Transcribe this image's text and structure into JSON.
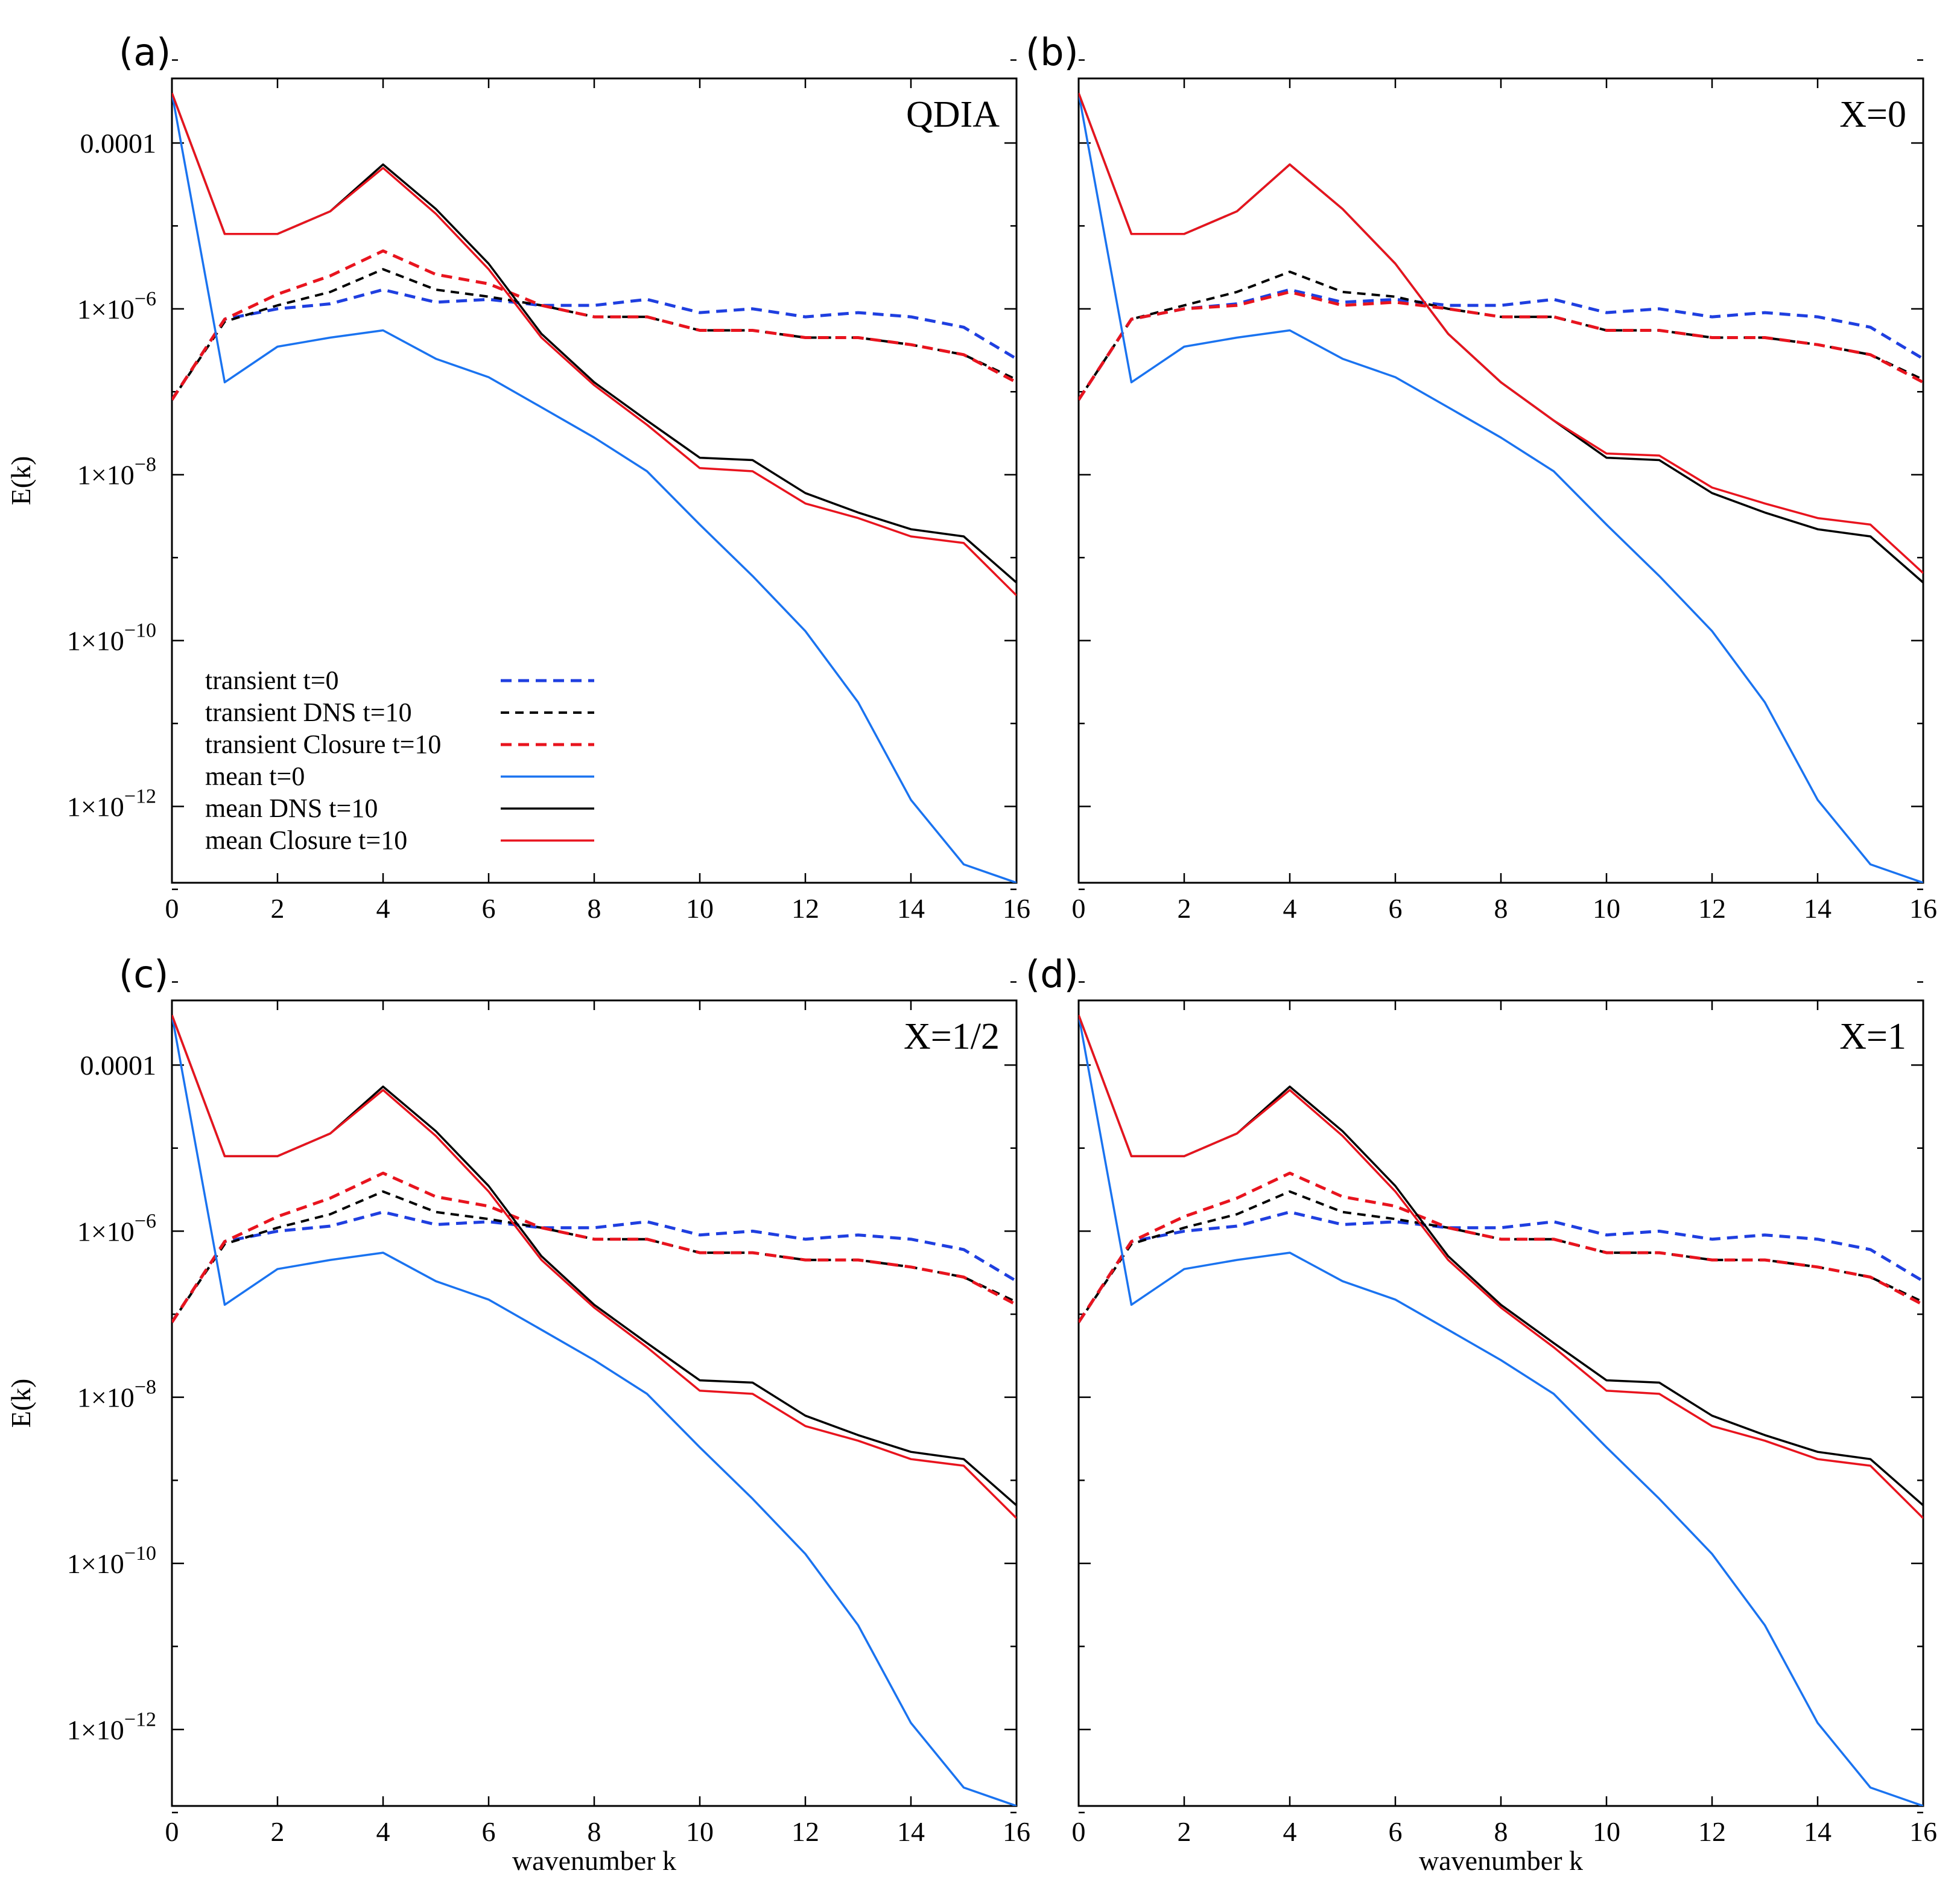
{
  "colors": {
    "dns": "#000000",
    "closure": "#e8141e",
    "transient_t0": "#1f3fe0",
    "mean_t0": "#1a73f0"
  },
  "legend": {
    "items": [
      {
        "label": "transient t=0",
        "series": "transient_t0"
      },
      {
        "label": "transient DNS t=10",
        "series": "transient_dns"
      },
      {
        "label": "transient Closure t=10",
        "series": "transient_closure"
      },
      {
        "label": "mean t=0",
        "series": "mean_t0"
      },
      {
        "label": "mean DNS t=10",
        "series": "mean_dns"
      },
      {
        "label": "mean Closure t=10",
        "series": "mean_closure"
      }
    ]
  },
  "chart_data": [
    {
      "panel": "(a)",
      "title": "QDIA",
      "type": "line",
      "xlabel": "",
      "ylabel": "E(k)",
      "yscale": "log",
      "xlim": [
        0,
        16
      ],
      "ylim": [
        1.2e-13,
        0.0006
      ],
      "xticks": [
        "0",
        "2",
        "4",
        "6",
        "8",
        "10",
        "12",
        "14",
        "16"
      ],
      "yticks": [
        {
          "base": "0.0001",
          "exp": ""
        },
        {
          "base": "1×10",
          "exp": "−6"
        },
        {
          "base": "1×10",
          "exp": "−8"
        },
        {
          "base": "1×10",
          "exp": "−10"
        },
        {
          "base": "1×10",
          "exp": "−12"
        }
      ],
      "x": [
        0,
        1,
        2,
        3,
        4,
        5,
        6,
        7,
        8,
        9,
        10,
        11,
        12,
        13,
        14,
        15,
        16
      ],
      "series": [
        {
          "name": "transient t=0",
          "key": "transient_t0",
          "values": [
            8e-08,
            7.5e-07,
            1e-06,
            1.15e-06,
            1.7e-06,
            1.2e-06,
            1.3e-06,
            1.1e-06,
            1.1e-06,
            1.3e-06,
            9e-07,
            1e-06,
            8e-07,
            9e-07,
            8e-07,
            6e-07,
            2.5e-07
          ]
        },
        {
          "name": "transient DNS t=10",
          "key": "transient_dns",
          "values": [
            8e-08,
            7e-07,
            1.1e-06,
            1.6e-06,
            3e-06,
            1.7e-06,
            1.4e-06,
            1.1e-06,
            8e-07,
            8e-07,
            5.5e-07,
            5.5e-07,
            4.5e-07,
            4.5e-07,
            3.7e-07,
            2.8e-07,
            1.4e-07
          ]
        },
        {
          "name": "transient Closure t=10",
          "key": "transient_closure",
          "values": [
            8e-08,
            7.5e-07,
            1.5e-06,
            2.5e-06,
            5e-06,
            2.6e-06,
            2e-06,
            1.1e-06,
            8e-07,
            8e-07,
            5.5e-07,
            5.5e-07,
            4.5e-07,
            4.5e-07,
            3.7e-07,
            2.8e-07,
            1.3e-07
          ]
        },
        {
          "name": "mean t=0",
          "key": "mean_t0",
          "values": [
            0.0004,
            1.3e-07,
            3.5e-07,
            4.5e-07,
            5.5e-07,
            2.5e-07,
            1.5e-07,
            6.5e-08,
            2.8e-08,
            1.1e-08,
            2.5e-09,
            6e-10,
            1.3e-10,
            1.8e-11,
            1.2e-12,
            2e-13,
            1.2e-13
          ]
        },
        {
          "name": "mean DNS t=10",
          "key": "mean_dns",
          "values": [
            0.0004,
            8e-06,
            8e-06,
            1.5e-05,
            5.5e-05,
            1.6e-05,
            3.5e-06,
            5e-07,
            1.3e-07,
            4.5e-08,
            1.6e-08,
            1.5e-08,
            6e-09,
            3.5e-09,
            2.2e-09,
            1.8e-09,
            5e-10
          ]
        },
        {
          "name": "mean Closure t=10",
          "key": "mean_closure",
          "values": [
            0.0004,
            8e-06,
            8e-06,
            1.5e-05,
            5e-05,
            1.4e-05,
            3e-06,
            4.5e-07,
            1.2e-07,
            4e-08,
            1.2e-08,
            1.1e-08,
            4.5e-09,
            3e-09,
            1.8e-09,
            1.5e-09,
            3.5e-10
          ]
        }
      ]
    },
    {
      "panel": "(b)",
      "title": "X=0",
      "type": "line",
      "xlabel": "",
      "ylabel": "",
      "yscale": "log",
      "xlim": [
        0,
        16
      ],
      "ylim": [
        1.2e-13,
        0.0006
      ],
      "xticks": [
        "0",
        "2",
        "4",
        "6",
        "8",
        "10",
        "12",
        "14",
        "16"
      ],
      "yticks": [],
      "x": [
        0,
        1,
        2,
        3,
        4,
        5,
        6,
        7,
        8,
        9,
        10,
        11,
        12,
        13,
        14,
        15,
        16
      ],
      "series": [
        {
          "name": "transient t=0",
          "key": "transient_t0",
          "values": [
            8e-08,
            7.5e-07,
            1e-06,
            1.15e-06,
            1.7e-06,
            1.2e-06,
            1.3e-06,
            1.1e-06,
            1.1e-06,
            1.3e-06,
            9e-07,
            1e-06,
            8e-07,
            9e-07,
            8e-07,
            6e-07,
            2.5e-07
          ]
        },
        {
          "name": "transient DNS t=10",
          "key": "transient_dns",
          "values": [
            8e-08,
            7.5e-07,
            1.1e-06,
            1.6e-06,
            2.8e-06,
            1.6e-06,
            1.4e-06,
            1e-06,
            8e-07,
            8e-07,
            5.5e-07,
            5.5e-07,
            4.5e-07,
            4.5e-07,
            3.7e-07,
            2.8e-07,
            1.4e-07
          ]
        },
        {
          "name": "transient Closure t=10",
          "key": "transient_closure",
          "values": [
            8e-08,
            7.5e-07,
            1e-06,
            1.1e-06,
            1.6e-06,
            1.1e-06,
            1.2e-06,
            1e-06,
            8e-07,
            8e-07,
            5.5e-07,
            5.5e-07,
            4.5e-07,
            4.5e-07,
            3.7e-07,
            2.8e-07,
            1.3e-07
          ]
        },
        {
          "name": "mean t=0",
          "key": "mean_t0",
          "values": [
            0.0004,
            1.3e-07,
            3.5e-07,
            4.5e-07,
            5.5e-07,
            2.5e-07,
            1.5e-07,
            6.5e-08,
            2.8e-08,
            1.1e-08,
            2.5e-09,
            6e-10,
            1.3e-10,
            1.8e-11,
            1.2e-12,
            2e-13,
            1.2e-13
          ]
        },
        {
          "name": "mean DNS t=10",
          "key": "mean_dns",
          "values": [
            0.0004,
            8e-06,
            8e-06,
            1.5e-05,
            5.5e-05,
            1.6e-05,
            3.5e-06,
            5e-07,
            1.3e-07,
            4.5e-08,
            1.6e-08,
            1.5e-08,
            6e-09,
            3.5e-09,
            2.2e-09,
            1.8e-09,
            5e-10
          ]
        },
        {
          "name": "mean Closure t=10",
          "key": "mean_closure",
          "values": [
            0.0004,
            8e-06,
            8e-06,
            1.5e-05,
            5.5e-05,
            1.6e-05,
            3.5e-06,
            5e-07,
            1.3e-07,
            4.5e-08,
            1.8e-08,
            1.7e-08,
            7e-09,
            4.5e-09,
            3e-09,
            2.5e-09,
            6.5e-10
          ]
        }
      ]
    },
    {
      "panel": "(c)",
      "title": "X=1/2",
      "type": "line",
      "xlabel": "wavenumber k",
      "ylabel": "E(k)",
      "yscale": "log",
      "xlim": [
        0,
        16
      ],
      "ylim": [
        1.2e-13,
        0.0006
      ],
      "xticks": [
        "0",
        "2",
        "4",
        "6",
        "8",
        "10",
        "12",
        "14",
        "16"
      ],
      "yticks": [
        {
          "base": "0.0001",
          "exp": ""
        },
        {
          "base": "1×10",
          "exp": "−6"
        },
        {
          "base": "1×10",
          "exp": "−8"
        },
        {
          "base": "1×10",
          "exp": "−10"
        },
        {
          "base": "1×10",
          "exp": "−12"
        }
      ],
      "x": [
        0,
        1,
        2,
        3,
        4,
        5,
        6,
        7,
        8,
        9,
        10,
        11,
        12,
        13,
        14,
        15,
        16
      ],
      "series": [
        {
          "name": "transient t=0",
          "key": "transient_t0",
          "values": [
            8e-08,
            7.5e-07,
            1e-06,
            1.15e-06,
            1.7e-06,
            1.2e-06,
            1.3e-06,
            1.1e-06,
            1.1e-06,
            1.3e-06,
            9e-07,
            1e-06,
            8e-07,
            9e-07,
            8e-07,
            6e-07,
            2.5e-07
          ]
        },
        {
          "name": "transient DNS t=10",
          "key": "transient_dns",
          "values": [
            8e-08,
            7e-07,
            1.1e-06,
            1.6e-06,
            3e-06,
            1.7e-06,
            1.4e-06,
            1.1e-06,
            8e-07,
            8e-07,
            5.5e-07,
            5.5e-07,
            4.5e-07,
            4.5e-07,
            3.7e-07,
            2.8e-07,
            1.4e-07
          ]
        },
        {
          "name": "transient Closure t=10",
          "key": "transient_closure",
          "values": [
            8e-08,
            7.5e-07,
            1.5e-06,
            2.5e-06,
            5e-06,
            2.6e-06,
            2e-06,
            1.1e-06,
            8e-07,
            8e-07,
            5.5e-07,
            5.5e-07,
            4.5e-07,
            4.5e-07,
            3.7e-07,
            2.8e-07,
            1.3e-07
          ]
        },
        {
          "name": "mean t=0",
          "key": "mean_t0",
          "values": [
            0.0004,
            1.3e-07,
            3.5e-07,
            4.5e-07,
            5.5e-07,
            2.5e-07,
            1.5e-07,
            6.5e-08,
            2.8e-08,
            1.1e-08,
            2.5e-09,
            6e-10,
            1.3e-10,
            1.8e-11,
            1.2e-12,
            2e-13,
            1.2e-13
          ]
        },
        {
          "name": "mean DNS t=10",
          "key": "mean_dns",
          "values": [
            0.0004,
            8e-06,
            8e-06,
            1.5e-05,
            5.5e-05,
            1.6e-05,
            3.5e-06,
            5e-07,
            1.3e-07,
            4.5e-08,
            1.6e-08,
            1.5e-08,
            6e-09,
            3.5e-09,
            2.2e-09,
            1.8e-09,
            5e-10
          ]
        },
        {
          "name": "mean Closure t=10",
          "key": "mean_closure",
          "values": [
            0.0004,
            8e-06,
            8e-06,
            1.5e-05,
            5e-05,
            1.4e-05,
            3e-06,
            4.5e-07,
            1.2e-07,
            4e-08,
            1.2e-08,
            1.1e-08,
            4.5e-09,
            3e-09,
            1.8e-09,
            1.5e-09,
            3.5e-10
          ]
        }
      ]
    },
    {
      "panel": "(d)",
      "title": "X=1",
      "type": "line",
      "xlabel": "wavenumber k",
      "ylabel": "",
      "yscale": "log",
      "xlim": [
        0,
        16
      ],
      "ylim": [
        1.2e-13,
        0.0006
      ],
      "xticks": [
        "0",
        "2",
        "4",
        "6",
        "8",
        "10",
        "12",
        "14",
        "16"
      ],
      "yticks": [],
      "x": [
        0,
        1,
        2,
        3,
        4,
        5,
        6,
        7,
        8,
        9,
        10,
        11,
        12,
        13,
        14,
        15,
        16
      ],
      "series": [
        {
          "name": "transient t=0",
          "key": "transient_t0",
          "values": [
            8e-08,
            7.5e-07,
            1e-06,
            1.15e-06,
            1.7e-06,
            1.2e-06,
            1.3e-06,
            1.1e-06,
            1.1e-06,
            1.3e-06,
            9e-07,
            1e-06,
            8e-07,
            9e-07,
            8e-07,
            6e-07,
            2.5e-07
          ]
        },
        {
          "name": "transient DNS t=10",
          "key": "transient_dns",
          "values": [
            8e-08,
            7e-07,
            1.1e-06,
            1.6e-06,
            3e-06,
            1.7e-06,
            1.4e-06,
            1.1e-06,
            8e-07,
            8e-07,
            5.5e-07,
            5.5e-07,
            4.5e-07,
            4.5e-07,
            3.7e-07,
            2.8e-07,
            1.4e-07
          ]
        },
        {
          "name": "transient Closure t=10",
          "key": "transient_closure",
          "values": [
            8e-08,
            7.5e-07,
            1.5e-06,
            2.5e-06,
            5e-06,
            2.6e-06,
            2e-06,
            1.1e-06,
            8e-07,
            8e-07,
            5.5e-07,
            5.5e-07,
            4.5e-07,
            4.5e-07,
            3.7e-07,
            2.8e-07,
            1.3e-07
          ]
        },
        {
          "name": "mean t=0",
          "key": "mean_t0",
          "values": [
            0.0004,
            1.3e-07,
            3.5e-07,
            4.5e-07,
            5.5e-07,
            2.5e-07,
            1.5e-07,
            6.5e-08,
            2.8e-08,
            1.1e-08,
            2.5e-09,
            6e-10,
            1.3e-10,
            1.8e-11,
            1.2e-12,
            2e-13,
            1.2e-13
          ]
        },
        {
          "name": "mean DNS t=10",
          "key": "mean_dns",
          "values": [
            0.0004,
            8e-06,
            8e-06,
            1.5e-05,
            5.5e-05,
            1.6e-05,
            3.5e-06,
            5e-07,
            1.3e-07,
            4.5e-08,
            1.6e-08,
            1.5e-08,
            6e-09,
            3.5e-09,
            2.2e-09,
            1.8e-09,
            5e-10
          ]
        },
        {
          "name": "mean Closure t=10",
          "key": "mean_closure",
          "values": [
            0.0004,
            8e-06,
            8e-06,
            1.5e-05,
            5e-05,
            1.4e-05,
            3e-06,
            4.5e-07,
            1.2e-07,
            4e-08,
            1.2e-08,
            1.1e-08,
            4.5e-09,
            3e-09,
            1.8e-09,
            1.5e-09,
            3.5e-10
          ]
        }
      ]
    }
  ]
}
